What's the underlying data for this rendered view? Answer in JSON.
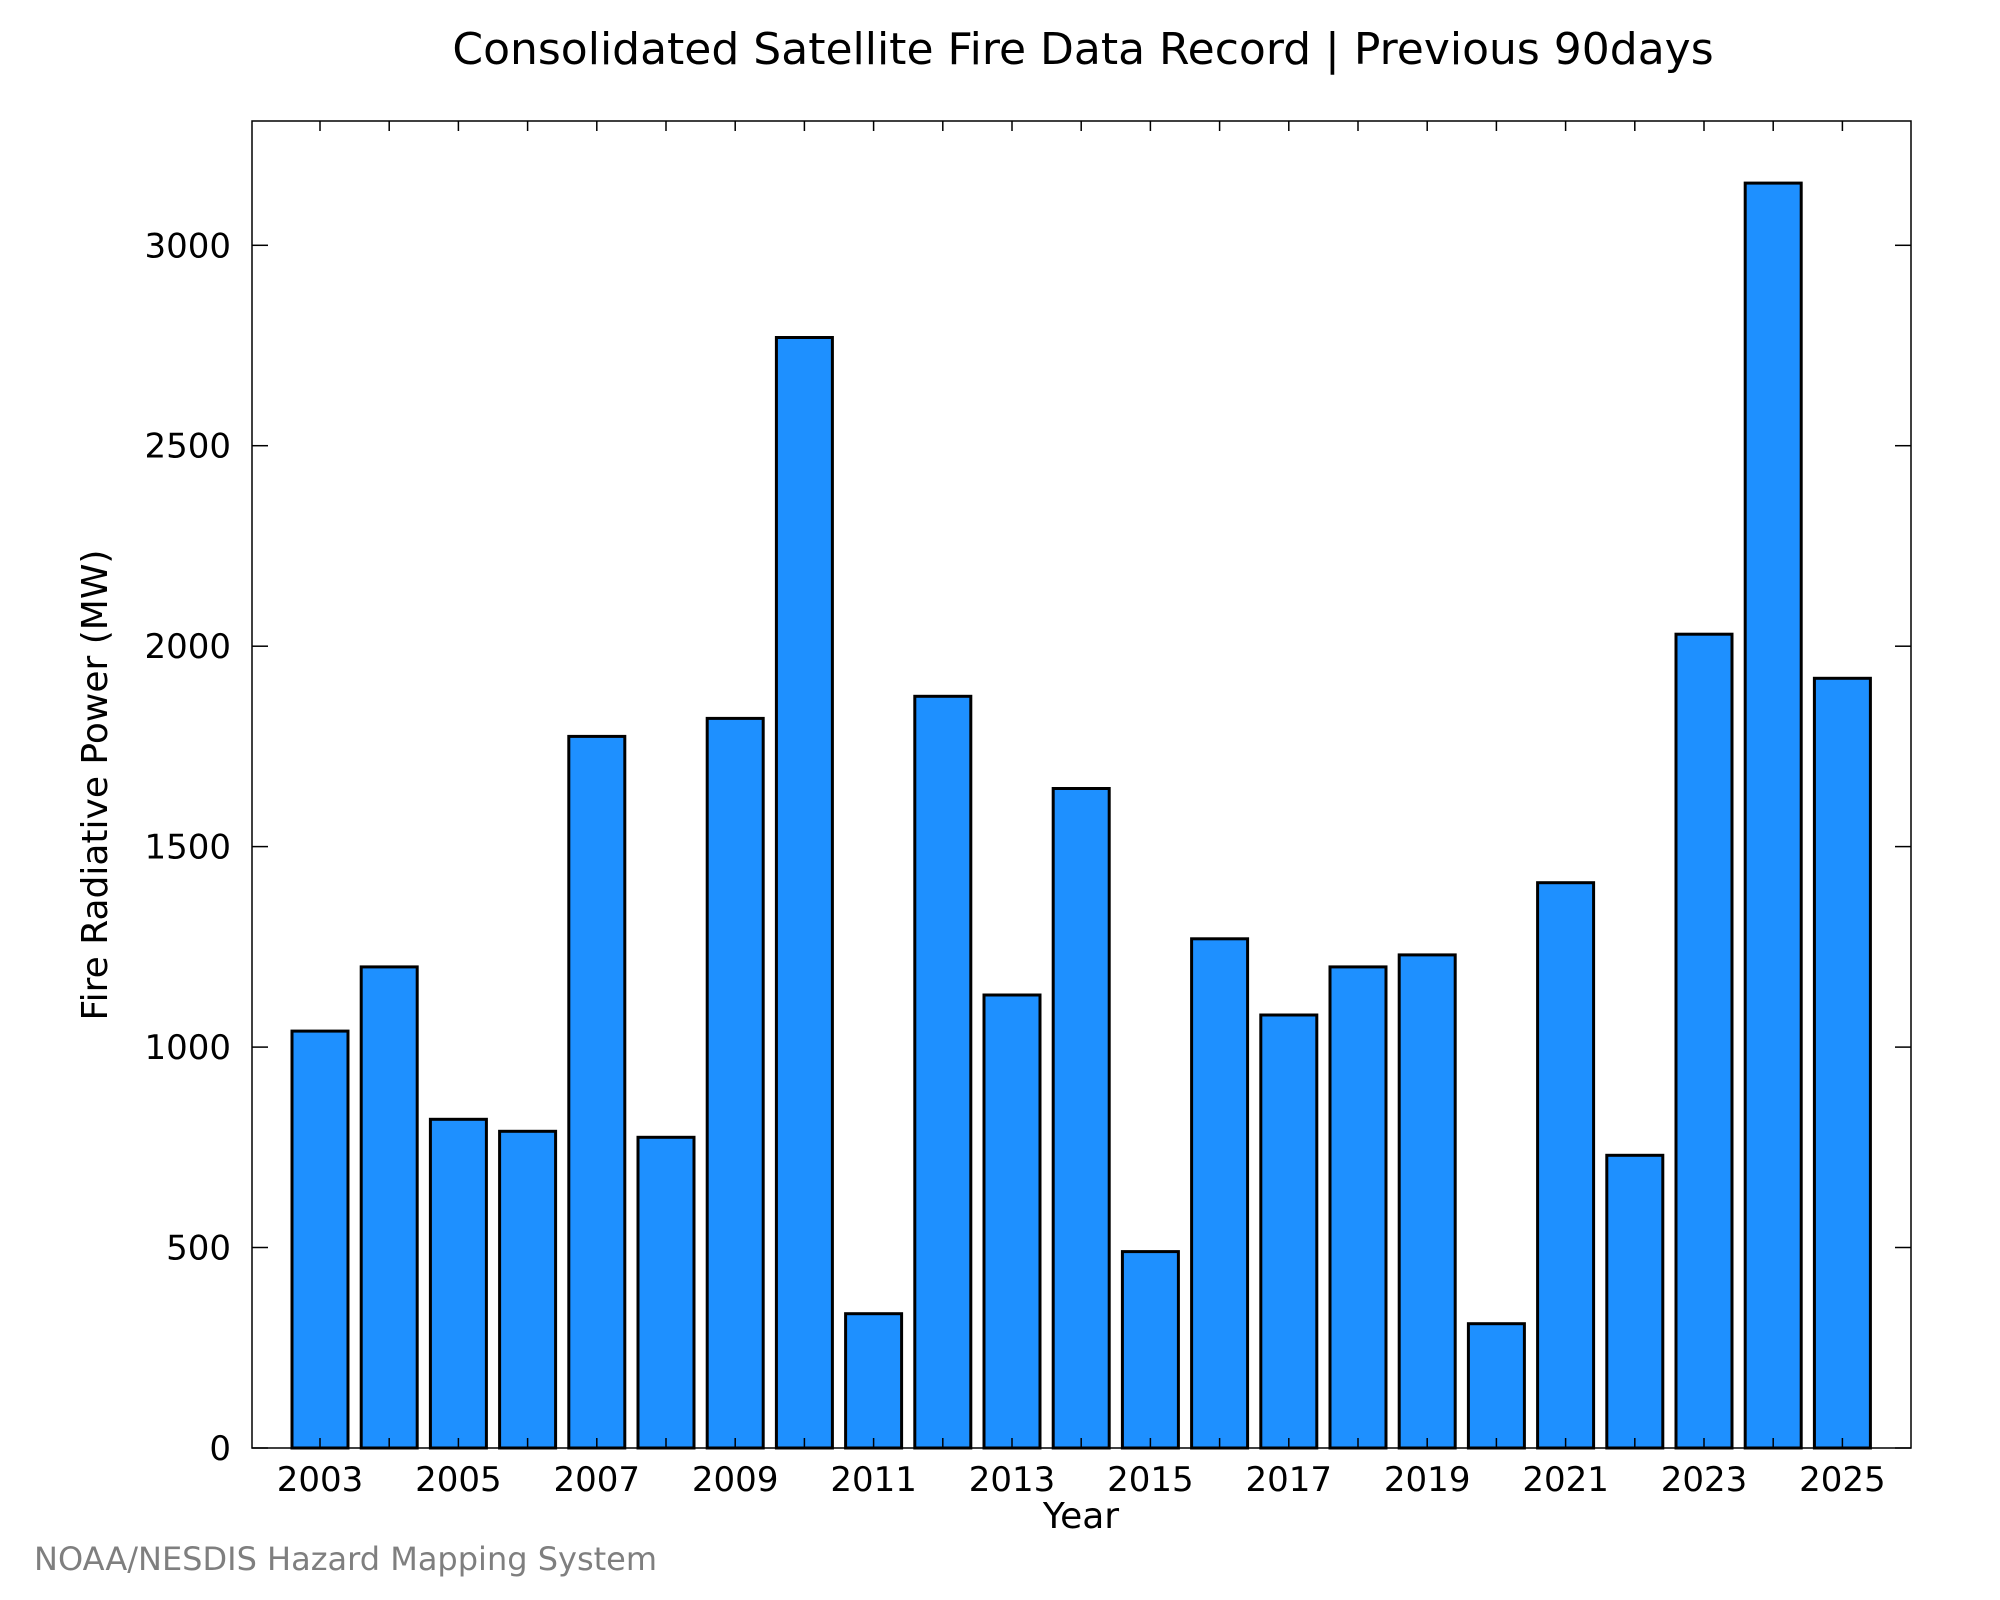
{
  "chart_data": {
    "type": "bar",
    "title": "Consolidated Satellite Fire Data Record | Previous 90days",
    "xlabel": "Year",
    "ylabel": "Fire Radiative Power (MW)",
    "categories": [
      "2003",
      "2004",
      "2005",
      "2006",
      "2007",
      "2008",
      "2009",
      "2010",
      "2011",
      "2012",
      "2013",
      "2014",
      "2015",
      "2016",
      "2017",
      "2018",
      "2019",
      "2020",
      "2021",
      "2022",
      "2023",
      "2024",
      "2025"
    ],
    "values": [
      1040,
      1200,
      820,
      790,
      1775,
      775,
      1820,
      2770,
      335,
      1875,
      1130,
      1645,
      490,
      1270,
      1080,
      1200,
      1230,
      310,
      1410,
      730,
      2030,
      3155,
      1920
    ],
    "x_tick_labels": [
      "2003",
      "2005",
      "2007",
      "2009",
      "2011",
      "2013",
      "2015",
      "2017",
      "2019",
      "2021",
      "2023",
      "2025"
    ],
    "y_ticks": [
      0,
      500,
      1000,
      1500,
      2000,
      2500,
      3000
    ],
    "y_tick_labels": [
      "0",
      "500",
      "1000",
      "1500",
      "2000",
      "2500",
      "3000"
    ],
    "ylim": [
      0,
      3310
    ],
    "grid": false,
    "legend": "none",
    "bar_color": "#1e90ff",
    "bar_edge_color": "#000000",
    "credit": "NOAA/NESDIS Hazard Mapping System"
  }
}
